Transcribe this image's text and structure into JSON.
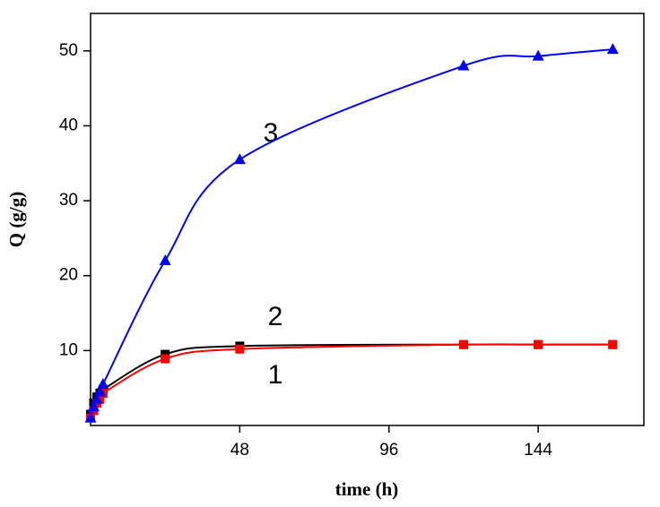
{
  "chart_data": {
    "type": "line",
    "x_label": "time (h)",
    "y_label": "Q (g/g)",
    "annotations": [
      "3",
      "2",
      "1"
    ],
    "series": [
      {
        "name": "2",
        "color": "#000000",
        "marker": "square",
        "x": [
          0,
          1,
          2,
          3,
          4,
          24,
          48,
          120,
          144,
          168
        ],
        "values": [
          1.5,
          3,
          3.8,
          4.3,
          4.8,
          9.5,
          10.6,
          10.8,
          10.8,
          10.8
        ]
      },
      {
        "name": "1",
        "color": "#ff0000",
        "marker": "square",
        "x": [
          0,
          1,
          2,
          3,
          4,
          24,
          48,
          120,
          144,
          168
        ],
        "values": [
          1,
          2,
          3,
          3.5,
          4.3,
          8.9,
          10.2,
          10.8,
          10.8,
          10.8
        ]
      },
      {
        "name": "3",
        "color": "#0000ff",
        "marker": "triangle",
        "x": [
          0,
          1,
          2,
          3,
          4,
          24,
          48,
          120,
          144,
          168
        ],
        "values": [
          1,
          2.5,
          3.5,
          4.5,
          5.5,
          22,
          35.5,
          48,
          49.3,
          50.2
        ]
      }
    ],
    "xlim": [
      0,
      178
    ],
    "xticks": [
      48,
      96,
      144
    ],
    "ylim": [
      0,
      55
    ],
    "yticks": [
      10,
      20,
      30,
      40,
      50
    ]
  }
}
